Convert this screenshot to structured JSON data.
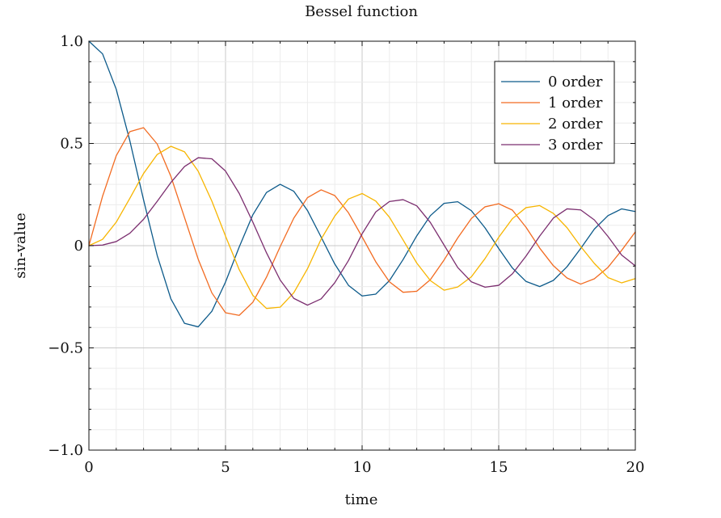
{
  "chart_data": {
    "type": "line",
    "title": "Bessel function",
    "xlabel": "time",
    "ylabel": "sin-value",
    "xlim": [
      0,
      20
    ],
    "ylim": [
      -1,
      1
    ],
    "xticks": [
      0,
      5,
      10,
      15,
      20
    ],
    "xtick_labels": [
      "0",
      "5",
      "10",
      "15",
      "20"
    ],
    "yticks": [
      -1.0,
      -0.5,
      0,
      0.5,
      1.0
    ],
    "ytick_labels": [
      "−1.0",
      "−0.5",
      "0",
      "0.5",
      "1.0"
    ],
    "grid": true,
    "legend": "top-right",
    "x": [
      0,
      0.5,
      1,
      1.5,
      2,
      2.5,
      3,
      3.5,
      4,
      4.5,
      5,
      5.5,
      6,
      6.5,
      7,
      7.5,
      8,
      8.5,
      9,
      9.5,
      10,
      10.5,
      11,
      11.5,
      12,
      12.5,
      13,
      13.5,
      14,
      14.5,
      15,
      15.5,
      16,
      16.5,
      17,
      17.5,
      18,
      18.5,
      19,
      19.5,
      20
    ],
    "series": [
      {
        "name": "0 order",
        "color": "#0c5a8a",
        "values": [
          1.0,
          0.938,
          0.765,
          0.512,
          0.224,
          -0.048,
          -0.26,
          -0.38,
          -0.397,
          -0.321,
          -0.178,
          -0.007,
          0.151,
          0.26,
          0.3,
          0.266,
          0.172,
          0.042,
          -0.09,
          -0.194,
          -0.246,
          -0.237,
          -0.171,
          -0.068,
          0.048,
          0.147,
          0.207,
          0.215,
          0.171,
          0.087,
          -0.014,
          -0.109,
          -0.175,
          -0.2,
          -0.17,
          -0.103,
          -0.014,
          0.081,
          0.147,
          0.18,
          0.167
        ]
      },
      {
        "name": "1 order",
        "color": "#f26b21",
        "values": [
          0.0,
          0.242,
          0.44,
          0.558,
          0.577,
          0.497,
          0.339,
          0.137,
          -0.066,
          -0.231,
          -0.328,
          -0.341,
          -0.277,
          -0.154,
          -0.005,
          0.135,
          0.235,
          0.273,
          0.245,
          0.161,
          0.043,
          -0.079,
          -0.177,
          -0.228,
          -0.223,
          -0.166,
          -0.07,
          0.038,
          0.133,
          0.19,
          0.205,
          0.174,
          0.09,
          -0.012,
          -0.098,
          -0.158,
          -0.188,
          -0.162,
          -0.106,
          -0.023,
          0.067
        ]
      },
      {
        "name": "2 order",
        "color": "#f7b500",
        "values": [
          0.0,
          0.031,
          0.115,
          0.232,
          0.353,
          0.446,
          0.486,
          0.459,
          0.364,
          0.218,
          0.047,
          -0.117,
          -0.243,
          -0.307,
          -0.301,
          -0.23,
          -0.113,
          0.032,
          0.145,
          0.228,
          0.255,
          0.218,
          0.139,
          0.028,
          -0.085,
          -0.171,
          -0.218,
          -0.202,
          -0.152,
          -0.063,
          0.041,
          0.132,
          0.186,
          0.196,
          0.158,
          0.088,
          -0.004,
          -0.087,
          -0.156,
          -0.182,
          -0.161
        ]
      },
      {
        "name": "3 order",
        "color": "#7b2e6f",
        "values": [
          0.0,
          0.003,
          0.02,
          0.061,
          0.129,
          0.217,
          0.309,
          0.387,
          0.43,
          0.425,
          0.365,
          0.256,
          0.115,
          -0.035,
          -0.168,
          -0.258,
          -0.291,
          -0.26,
          -0.181,
          -0.073,
          0.058,
          0.165,
          0.216,
          0.225,
          0.195,
          0.113,
          0.003,
          -0.107,
          -0.177,
          -0.203,
          -0.194,
          -0.138,
          -0.051,
          0.047,
          0.135,
          0.18,
          0.175,
          0.126,
          0.045,
          -0.046,
          -0.099
        ]
      }
    ]
  }
}
